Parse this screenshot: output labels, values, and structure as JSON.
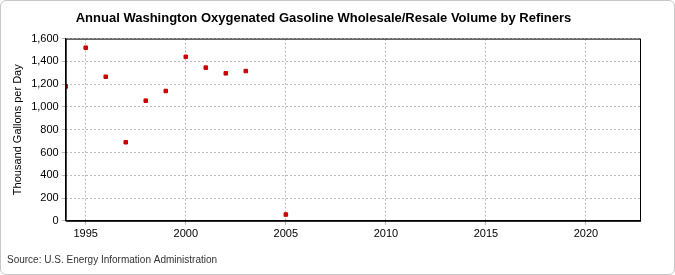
{
  "chart_data": {
    "type": "scatter",
    "title": "Annual Washington Oxygenated Gasoline Wholesale/Resale Volume by Refiners",
    "y_label": "Thousand Gallons per Day",
    "source": "Source: U.S. Energy Information Administration",
    "x": [
      1994,
      1995,
      1996,
      1997,
      1998,
      1999,
      2000,
      2001,
      2002,
      2003,
      2005
    ],
    "values": [
      1180,
      1520,
      1265,
      690,
      1055,
      1140,
      1440,
      1345,
      1295,
      1315,
      55
    ],
    "color": "#cc0000",
    "marker": "square",
    "xlim": [
      1994,
      2022.7
    ],
    "xticks": [
      1995,
      2000,
      2005,
      2010,
      2015,
      2020
    ],
    "ylim": [
      0,
      1600
    ],
    "yticks": [
      0,
      200,
      400,
      600,
      800,
      {
        "value": 1000,
        "label": "1,000"
      },
      {
        "value": 1200,
        "label": "1,200"
      },
      {
        "value": 1400,
        "label": "1,400"
      },
      {
        "value": 1600,
        "label": "1,600"
      }
    ],
    "grid": true
  }
}
